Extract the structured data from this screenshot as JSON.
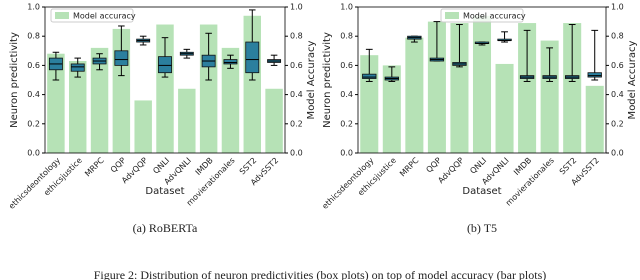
{
  "caption": "Figure 2: Distribution of neuron predictivities (box plots) on top of model accuracy (bar plots)",
  "chart_data": [
    {
      "type": "barbox",
      "caption": "(a) RoBERTa",
      "xlabel": "Dataset",
      "ylabel": "Neuron predictivity",
      "y2label": "Model Accuracy",
      "legend": "upper left",
      "categories": [
        "ethicsdeontology",
        "ethicsjustice",
        "MRPC",
        "QQP",
        "AdvQQP",
        "QNLI",
        "AdvQNLI",
        "IMDB",
        "movierationales",
        "SST2",
        "AdvSST2"
      ],
      "category_colors": [
        "#3a3aa8",
        "#3a3aa8",
        "#8a1fa8",
        "#8a1fa8",
        "#8a1fa8",
        "#b07ed8",
        "#b07ed8",
        "#a01818",
        "#a01818",
        "#a01818",
        "#a01818"
      ],
      "series": [
        {
          "name": "Model accuracy",
          "color": "#b6e2b6",
          "axis": "y2",
          "values": [
            0.68,
            0.63,
            0.72,
            0.85,
            0.36,
            0.88,
            0.44,
            0.88,
            0.72,
            0.94,
            0.44
          ]
        }
      ],
      "box_color": "#2b7f9e",
      "boxes": {
        "median": [
          0.61,
          0.59,
          0.63,
          0.64,
          0.77,
          0.6,
          0.68,
          0.63,
          0.62,
          0.64,
          0.63
        ],
        "q1": [
          0.57,
          0.56,
          0.61,
          0.6,
          0.76,
          0.55,
          0.67,
          0.59,
          0.61,
          0.55,
          0.62
        ],
        "q3": [
          0.65,
          0.61,
          0.65,
          0.7,
          0.78,
          0.66,
          0.69,
          0.67,
          0.64,
          0.76,
          0.64
        ],
        "whisker_low": [
          0.5,
          0.52,
          0.57,
          0.53,
          0.74,
          0.52,
          0.65,
          0.5,
          0.58,
          0.5,
          0.6
        ],
        "whisker_high": [
          0.69,
          0.65,
          0.68,
          0.87,
          0.8,
          0.79,
          0.71,
          0.82,
          0.67,
          0.98,
          0.67
        ]
      },
      "ylim": [
        0,
        1
      ],
      "y2lim": [
        0,
        1
      ],
      "yticks": [
        {
          "value": 0,
          "label": "0.0"
        },
        {
          "value": 0.2,
          "label": "0.2"
        },
        {
          "value": 0.4,
          "label": "0.4"
        },
        {
          "value": 0.6,
          "label": "0.6"
        },
        {
          "value": 0.8,
          "label": "0.8"
        },
        {
          "value": 1,
          "label": "1.0"
        }
      ],
      "y2ticks": [
        {
          "value": 0,
          "label": "0.0"
        },
        {
          "value": 0.2,
          "label": "0.2"
        },
        {
          "value": 0.4,
          "label": "0.4"
        },
        {
          "value": 0.6,
          "label": "0.6"
        },
        {
          "value": 0.8,
          "label": "0.8"
        },
        {
          "value": 1,
          "label": "1.0"
        }
      ]
    },
    {
      "type": "barbox",
      "caption": "(b) T5",
      "xlabel": "Dataset",
      "ylabel": "Neuron predictivity",
      "y2label": "Model Accuracy",
      "legend": "upper center",
      "categories": [
        "ethicsdeontology",
        "ethicsjustice",
        "MRPC",
        "QQP",
        "AdvQQP",
        "QNLI",
        "AdvQNLI",
        "IMDB",
        "movierationales",
        "SST2",
        "AdvSST2"
      ],
      "category_colors": [
        "#3a3aa8",
        "#3a3aa8",
        "#8a1fa8",
        "#8a1fa8",
        "#8a1fa8",
        "#b07ed8",
        "#b07ed8",
        "#a01818",
        "#a01818",
        "#a01818",
        "#a01818"
      ],
      "series": [
        {
          "name": "Model accuracy",
          "color": "#b6e2b6",
          "axis": "y2",
          "values": [
            0.67,
            0.6,
            0.79,
            0.9,
            0.89,
            0.94,
            0.61,
            0.89,
            0.77,
            0.89,
            0.46
          ]
        }
      ],
      "box_color": "#2b7f9e",
      "boxes": {
        "median": [
          0.52,
          0.51,
          0.79,
          0.64,
          0.61,
          0.75,
          0.77,
          0.52,
          0.52,
          0.52,
          0.53
        ],
        "q1": [
          0.51,
          0.5,
          0.78,
          0.63,
          0.6,
          0.75,
          0.77,
          0.51,
          0.51,
          0.51,
          0.52
        ],
        "q3": [
          0.54,
          0.52,
          0.8,
          0.65,
          0.62,
          0.76,
          0.78,
          0.53,
          0.53,
          0.53,
          0.55
        ],
        "whisker_low": [
          0.49,
          0.49,
          0.76,
          0.63,
          0.59,
          0.74,
          0.76,
          0.49,
          0.49,
          0.49,
          0.5
        ],
        "whisker_high": [
          0.71,
          0.59,
          0.8,
          0.9,
          0.88,
          0.76,
          0.83,
          0.84,
          0.72,
          0.88,
          0.84
        ]
      },
      "ylim": [
        0,
        1
      ],
      "y2lim": [
        0,
        1
      ],
      "yticks": [
        {
          "value": 0,
          "label": "0.0"
        },
        {
          "value": 0.2,
          "label": "0.2"
        },
        {
          "value": 0.4,
          "label": "0.4"
        },
        {
          "value": 0.6,
          "label": "0.6"
        },
        {
          "value": 0.8,
          "label": "0.8"
        },
        {
          "value": 1,
          "label": "1.0"
        }
      ],
      "y2ticks": [
        {
          "value": 0,
          "label": "0.0"
        },
        {
          "value": 0.2,
          "label": "0.2"
        },
        {
          "value": 0.4,
          "label": "0.4"
        },
        {
          "value": 0.6,
          "label": "0.6"
        },
        {
          "value": 0.8,
          "label": "0.8"
        },
        {
          "value": 1,
          "label": "1.0"
        }
      ]
    }
  ]
}
